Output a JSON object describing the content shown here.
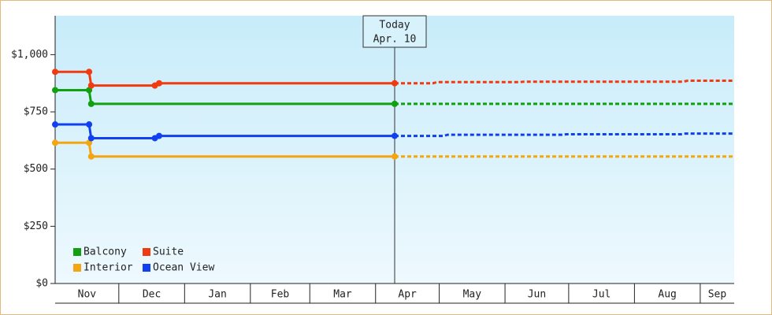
{
  "chart_data": {
    "type": "line",
    "categories_note": null,
    "annotation": {
      "x": 160,
      "lines": [
        "Today",
        "Apr. 10"
      ]
    },
    "xlim": [
      0,
      320
    ],
    "xticks": [
      {
        "value": 0,
        "label": "Nov"
      },
      {
        "value": 30,
        "label": "Dec"
      },
      {
        "value": 61,
        "label": "Jan"
      },
      {
        "value": 92,
        "label": "Feb"
      },
      {
        "value": 120,
        "label": "Mar"
      },
      {
        "value": 151,
        "label": "Apr"
      },
      {
        "value": 181,
        "label": "May"
      },
      {
        "value": 212,
        "label": "Jun"
      },
      {
        "value": 242,
        "label": "Jul"
      },
      {
        "value": 273,
        "label": "Aug"
      },
      {
        "value": 304,
        "label": "Sep"
      }
    ],
    "ylim": [
      0,
      1170
    ],
    "yticks": [
      {
        "value": 0,
        "label": "$0"
      },
      {
        "value": 250,
        "label": "$250"
      },
      {
        "value": 500,
        "label": "$500"
      },
      {
        "value": 750,
        "label": "$750"
      },
      {
        "value": 1000,
        "label": "$1,000"
      }
    ],
    "legend": "lower left",
    "series": [
      {
        "name": "Balcony",
        "color": "#10a010",
        "x": [
          0,
          16,
          17,
          160,
          320
        ],
        "values": [
          845,
          845,
          785,
          785,
          785
        ]
      },
      {
        "name": "Suite",
        "color": "#f03a10",
        "x": [
          0,
          16,
          17,
          47,
          49,
          160,
          178,
          180,
          219,
          221,
          296,
          298,
          320
        ],
        "values": [
          925,
          925,
          865,
          865,
          875,
          875,
          875,
          880,
          880,
          882,
          882,
          886,
          886
        ]
      },
      {
        "name": "Interior",
        "color": "#f5a510",
        "x": [
          0,
          16,
          17,
          160,
          320
        ],
        "values": [
          615,
          615,
          555,
          555,
          555
        ]
      },
      {
        "name": "Ocean View",
        "color": "#1040f0",
        "x": [
          0,
          16,
          17,
          47,
          49,
          160,
          183,
          185,
          239,
          241,
          295,
          297,
          320
        ],
        "values": [
          695,
          695,
          635,
          635,
          645,
          645,
          645,
          650,
          650,
          652,
          652,
          655,
          655
        ]
      }
    ]
  }
}
